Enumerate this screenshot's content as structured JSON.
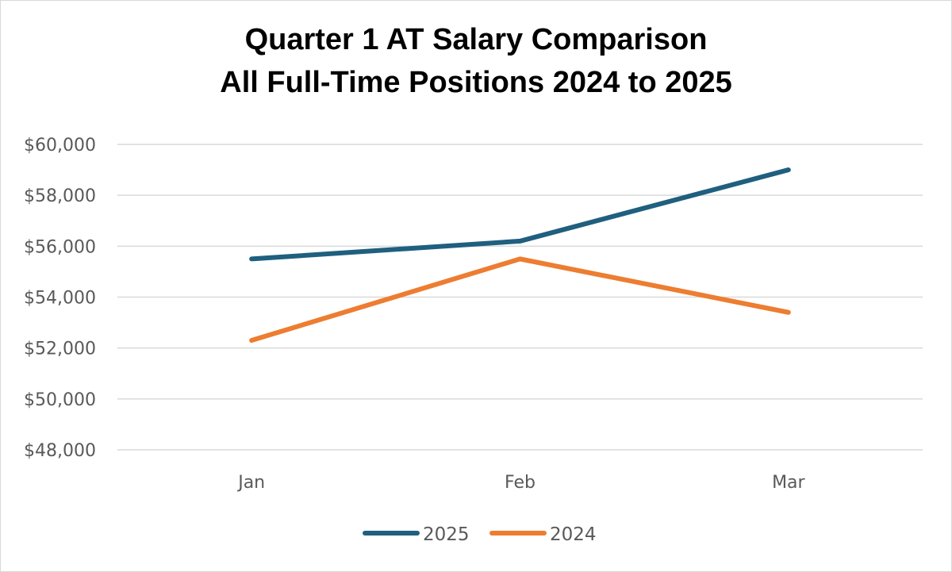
{
  "chart_data": {
    "type": "line",
    "title": [
      "Quarter 1 AT Salary Comparison",
      "All Full-Time Positions 2024 to 2025"
    ],
    "categories": [
      "Jan",
      "Feb",
      "Mar"
    ],
    "series": [
      {
        "name": "2025",
        "color": "#1f5f7f",
        "values": [
          55500,
          56200,
          59000
        ]
      },
      {
        "name": "2024",
        "color": "#ed7d31",
        "values": [
          52300,
          55500,
          53400
        ]
      }
    ],
    "ylim": [
      48000,
      60000
    ],
    "yticks": [
      48000,
      50000,
      52000,
      54000,
      56000,
      58000,
      60000
    ],
    "ytick_labels": [
      "$48,000",
      "$50,000",
      "$52,000",
      "$54,000",
      "$56,000",
      "$58,000",
      "$60,000"
    ],
    "grid": true,
    "legend_position": "bottom"
  }
}
